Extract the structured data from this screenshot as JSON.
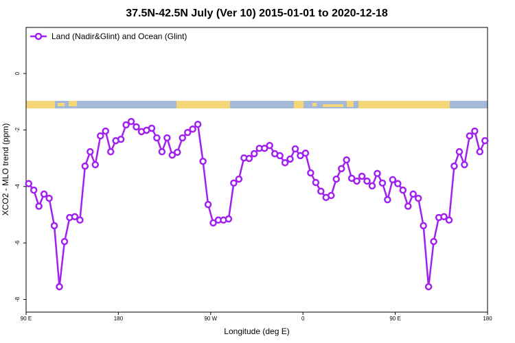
{
  "chart_data": {
    "type": "line",
    "title": "37.5N-42.5N July (Ver 10)   2015-01-01 to 2020-12-18",
    "x_label": "Longitude (deg E)",
    "y_label": "XCO2 - MLO trend (ppm)",
    "xlim": [
      90,
      540
    ],
    "ylim": [
      -8.45,
      1.63
    ],
    "xticks": [
      {
        "value": 90,
        "label": "90 E"
      },
      180,
      {
        "value": 270,
        "label": "90 W"
      },
      {
        "value": 360,
        "label": "0"
      },
      {
        "value": 450,
        "label": "90 E"
      },
      {
        "value": 540,
        "label": "180"
      }
    ],
    "yticks": [
      0,
      -2,
      -4,
      -6,
      -8
    ],
    "legend": "top-left",
    "x": [
      92.5,
      97.5,
      102.5,
      107.5,
      112.5,
      117.5,
      122.5,
      127.5,
      132.5,
      137.5,
      142.5,
      147.5,
      152.5,
      157.5,
      162.5,
      167.5,
      172.5,
      177.5,
      182.5,
      187.5,
      192.5,
      197.5,
      202.5,
      207.5,
      212.5,
      217.5,
      222.5,
      227.5,
      232.5,
      237.5,
      242.5,
      247.5,
      252.5,
      257.5,
      262.5,
      267.5,
      272.5,
      277.5,
      282.5,
      287.5,
      292.5,
      297.5,
      302.5,
      307.5,
      312.5,
      317.5,
      322.5,
      327.5,
      332.5,
      337.5,
      342.5,
      347.5,
      352.5,
      357.5,
      362.5,
      367.5,
      372.5,
      377.5,
      382.5,
      387.5,
      392.5,
      397.5,
      402.5,
      407.5,
      412.5,
      417.5,
      422.5,
      427.5,
      432.5,
      437.5,
      442.5,
      447.5,
      452.5,
      457.5,
      462.5,
      467.5,
      472.5,
      477.5,
      482.5,
      487.5,
      492.5,
      497.5,
      502.5,
      507.5,
      512.5,
      517.5,
      522.5,
      527.5,
      532.5,
      537.5
    ],
    "series": [
      {
        "name": "Land (Nadir&Glint) and Ocean (Glint)",
        "color": "#a020f0",
        "values": [
          -3.9,
          -4.13,
          -4.7,
          -4.27,
          -4.42,
          -5.39,
          -7.55,
          -5.95,
          -5.1,
          -5.07,
          -5.19,
          -3.28,
          -2.77,
          -3.23,
          -2.21,
          -2.04,
          -2.77,
          -2.38,
          -2.33,
          -1.82,
          -1.7,
          -1.89,
          -2.06,
          -2.01,
          -1.94,
          -2.28,
          -2.77,
          -2.28,
          -2.89,
          -2.79,
          -2.28,
          -2.09,
          -1.97,
          -1.8,
          -3.11,
          -4.64,
          -5.29,
          -5.19,
          -5.19,
          -5.15,
          -3.88,
          -3.74,
          -2.99,
          -3.01,
          -2.84,
          -2.65,
          -2.65,
          -2.55,
          -2.84,
          -2.91,
          -3.16,
          -3.03,
          -2.67,
          -2.91,
          -2.82,
          -3.52,
          -3.86,
          -4.17,
          -4.39,
          -4.32,
          -3.74,
          -3.37,
          -3.06,
          -3.71,
          -3.81,
          -3.64,
          -3.81,
          -3.98,
          -3.54,
          -3.88,
          -4.47,
          -3.76,
          -3.9,
          -4.13,
          -4.7,
          -4.27,
          -4.42,
          -5.39,
          -7.55,
          -5.95,
          -5.1,
          -5.07,
          -5.19,
          -3.28,
          -2.77,
          -3.23,
          -2.21,
          -2.04,
          -2.77,
          -2.38
        ]
      }
    ]
  }
}
